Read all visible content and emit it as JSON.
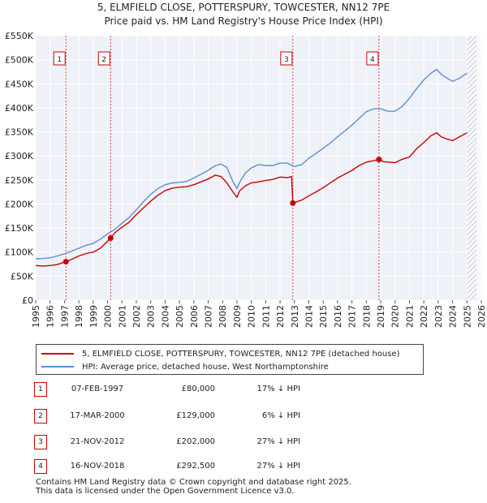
{
  "chart_data": {
    "type": "line",
    "title": "5, ELMFIELD CLOSE, POTTERSPURY, TOWCESTER, NN12 7PE",
    "subtitle": "Price paid vs. HM Land Registry's House Price Index (HPI)",
    "xlabel": "",
    "ylabel": "",
    "xlim": [
      1995,
      2026
    ],
    "ylim": [
      0,
      550000
    ],
    "x_ticks": [
      "1995",
      "1996",
      "1997",
      "1998",
      "1999",
      "2000",
      "2001",
      "2002",
      "2003",
      "2004",
      "2005",
      "2006",
      "2007",
      "2008",
      "2009",
      "2010",
      "2011",
      "2012",
      "2013",
      "2014",
      "2015",
      "2016",
      "2017",
      "2018",
      "2019",
      "2020",
      "2021",
      "2022",
      "2023",
      "2024",
      "2025",
      "2026"
    ],
    "y_ticks": [
      {
        "value": 0,
        "label": "£0"
      },
      {
        "value": 50000,
        "label": "£50K"
      },
      {
        "value": 100000,
        "label": "£100K"
      },
      {
        "value": 150000,
        "label": "£150K"
      },
      {
        "value": 200000,
        "label": "£200K"
      },
      {
        "value": 250000,
        "label": "£250K"
      },
      {
        "value": 300000,
        "label": "£300K"
      },
      {
        "value": 350000,
        "label": "£350K"
      },
      {
        "value": 400000,
        "label": "£400K"
      },
      {
        "value": 450000,
        "label": "£450K"
      },
      {
        "value": 500000,
        "label": "£500K"
      },
      {
        "value": 550000,
        "label": "£550K"
      }
    ],
    "grid": true,
    "future_start": 2025.0,
    "series": [
      {
        "name": "5, ELMFIELD CLOSE, POTTERSPURY, TOWCESTER, NN12 7PE (detached house)",
        "color": "#cc0000",
        "x": [
          1995.0,
          1995.5,
          1996.0,
          1996.5,
          1997.1,
          1997.5,
          1998.0,
          1998.5,
          1999.0,
          1999.5,
          2000.21,
          2000.5,
          2001.0,
          2001.5,
          2002.0,
          2002.5,
          2003.0,
          2003.5,
          2004.0,
          2004.5,
          2005.0,
          2005.5,
          2006.0,
          2006.5,
          2007.0,
          2007.5,
          2007.9,
          2008.3,
          2008.7,
          2009.0,
          2009.2,
          2009.6,
          2010.0,
          2010.5,
          2011.0,
          2011.5,
          2012.0,
          2012.5,
          2012.8,
          2012.89,
          2013.0,
          2013.5,
          2014.0,
          2014.5,
          2015.0,
          2015.5,
          2016.0,
          2016.5,
          2017.0,
          2017.5,
          2018.0,
          2018.5,
          2018.88,
          2019.2,
          2019.6,
          2020.0,
          2020.5,
          2021.0,
          2021.5,
          2022.0,
          2022.5,
          2022.9,
          2023.2,
          2023.6,
          2024.0,
          2024.5,
          2025.0
        ],
        "values": [
          72000,
          71000,
          72000,
          74000,
          80000,
          85000,
          92000,
          97000,
          100000,
          108000,
          129000,
          140000,
          152000,
          162000,
          178000,
          192000,
          206000,
          218000,
          228000,
          233000,
          235000,
          236000,
          240000,
          246000,
          252000,
          260000,
          257000,
          244000,
          226000,
          214000,
          228000,
          238000,
          244000,
          246000,
          249000,
          251000,
          256000,
          255000,
          257000,
          202000,
          203000,
          208000,
          217000,
          225000,
          234000,
          244000,
          254000,
          262000,
          270000,
          280000,
          287000,
          290000,
          292500,
          288000,
          287000,
          286000,
          293000,
          298000,
          315000,
          328000,
          342000,
          348000,
          340000,
          335000,
          332000,
          340000,
          348000
        ]
      },
      {
        "name": "HPI: Average price, detached house, West Northamptonshire",
        "color": "#5b8fd0",
        "x": [
          1995.0,
          1995.5,
          1996.0,
          1996.5,
          1997.0,
          1997.5,
          1998.0,
          1998.5,
          1999.0,
          1999.5,
          2000.0,
          2000.5,
          2001.0,
          2001.5,
          2002.0,
          2002.5,
          2003.0,
          2003.5,
          2004.0,
          2004.5,
          2005.0,
          2005.5,
          2006.0,
          2006.5,
          2007.0,
          2007.5,
          2007.9,
          2008.3,
          2008.7,
          2009.0,
          2009.2,
          2009.6,
          2010.0,
          2010.5,
          2011.0,
          2011.5,
          2012.0,
          2012.5,
          2013.0,
          2013.5,
          2014.0,
          2014.5,
          2015.0,
          2015.5,
          2016.0,
          2016.5,
          2017.0,
          2017.5,
          2018.0,
          2018.5,
          2019.0,
          2019.5,
          2020.0,
          2020.5,
          2021.0,
          2021.5,
          2022.0,
          2022.5,
          2022.9,
          2023.2,
          2023.6,
          2024.0,
          2024.5,
          2025.0
        ],
        "values": [
          86000,
          86500,
          88000,
          92000,
          96500,
          102000,
          108000,
          114000,
          118000,
          127000,
          138000,
          147000,
          160000,
          172000,
          188000,
          205000,
          220000,
          232000,
          240000,
          244000,
          245000,
          247000,
          254000,
          262000,
          270000,
          280000,
          283000,
          276000,
          248000,
          232000,
          246000,
          265000,
          275000,
          282000,
          280000,
          280000,
          285000,
          285000,
          278000,
          282000,
          295000,
          305000,
          316000,
          327000,
          340000,
          352000,
          364000,
          378000,
          392000,
          398000,
          398000,
          393000,
          393000,
          403000,
          420000,
          440000,
          458000,
          472000,
          480000,
          470000,
          462000,
          455000,
          462000,
          472000
        ]
      }
    ],
    "transactions": [
      {
        "num": "1",
        "x": 1997.1,
        "value": 80000,
        "date": "07-FEB-1997",
        "price": "£80,000",
        "hpi": "17% ↓ HPI"
      },
      {
        "num": "2",
        "x": 2000.21,
        "value": 129000,
        "date": "17-MAR-2000",
        "price": "£129,000",
        "hpi": "6% ↓ HPI"
      },
      {
        "num": "3",
        "x": 2012.89,
        "value": 202000,
        "date": "21-NOV-2012",
        "price": "£202,000",
        "hpi": "27% ↓ HPI"
      },
      {
        "num": "4",
        "x": 2018.88,
        "value": 292500,
        "date": "16-NOV-2018",
        "price": "£292,500",
        "hpi": "27% ↓ HPI"
      }
    ]
  },
  "footer": {
    "line1": "Contains HM Land Registry data © Crown copyright and database right 2025.",
    "line2": "This data is licensed under the Open Government Licence v3.0."
  }
}
